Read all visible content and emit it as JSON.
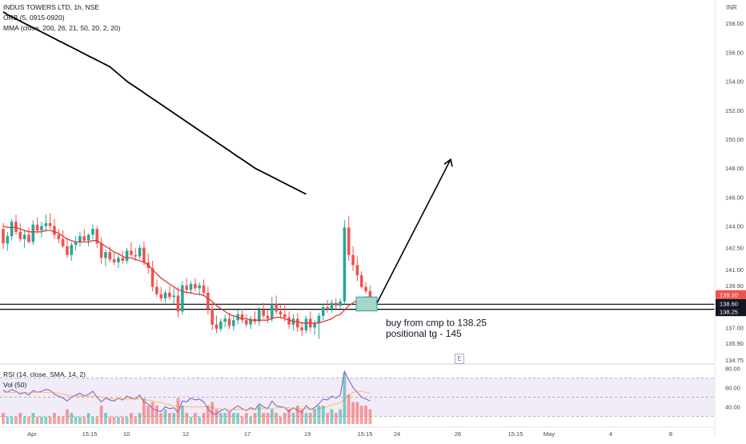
{
  "header": {
    "symbol_line": "INDUS TOWERS LTD, 1h, NSE",
    "orb_line": "ORB (5, 0915-0920)",
    "mma_line": "MMA (close, 200, 26, 21, 50, 20, 2, 20)"
  },
  "currency": "INR",
  "annotation": {
    "line1": "buy from cmp to 138.25",
    "line2": "positional tg - 145"
  },
  "marker_badge": "E",
  "rsi_pane": {
    "label": "RSI (14, close, SMA, 14, 2)",
    "vol_label": "Vol (50)",
    "ticks": [
      "80.00",
      "60.00",
      "40.00"
    ],
    "band": [
      30,
      70
    ]
  },
  "colors": {
    "up": "#26a69a",
    "down": "#ef5350",
    "ma_fast": "#e53935",
    "ma_slow": "#000000",
    "rsi_line": "#7e57c2",
    "rsi_band": "#ede7f6"
  },
  "chart_data": {
    "type": "candlestick",
    "timeframe": "1h",
    "ylim": [
      134.75,
      159.5
    ],
    "y_ticks": [
      "158.00",
      "156.00",
      "154.00",
      "152.00",
      "150.00",
      "148.00",
      "146.00",
      "144.00",
      "142.50",
      "141.00",
      "139.90",
      "137.00",
      "135.90",
      "134.75"
    ],
    "x_ticks": [
      "Apr",
      "15:15",
      "10",
      "12",
      "17",
      "19",
      "15:15",
      "24",
      "26",
      "15:15",
      "May",
      "4",
      "8"
    ],
    "price_labels": [
      {
        "text": "139.10",
        "value": 139.1,
        "style": "red"
      },
      {
        "text": "138.60",
        "value": 138.6,
        "style": "black"
      },
      {
        "text": "138.25",
        "value": 138.25,
        "style": "black"
      }
    ],
    "horizontal_levels": [
      138.6,
      138.25
    ],
    "candles": [
      [
        143.8,
        144.2,
        142.4,
        142.8
      ],
      [
        142.8,
        143.6,
        142.3,
        143.3
      ],
      [
        143.3,
        144.5,
        143.0,
        144.3
      ],
      [
        144.3,
        144.8,
        143.4,
        143.6
      ],
      [
        143.6,
        144.2,
        142.9,
        143.1
      ],
      [
        143.1,
        143.7,
        142.5,
        143.4
      ],
      [
        143.4,
        143.9,
        142.8,
        142.9
      ],
      [
        142.9,
        144.4,
        142.7,
        144.1
      ],
      [
        144.1,
        144.6,
        143.5,
        143.7
      ],
      [
        143.7,
        144.3,
        143.2,
        144.0
      ],
      [
        144.0,
        144.8,
        143.6,
        144.2
      ],
      [
        144.2,
        144.9,
        143.8,
        144.0
      ],
      [
        144.0,
        144.5,
        143.1,
        143.4
      ],
      [
        143.4,
        143.8,
        142.8,
        143.1
      ],
      [
        143.1,
        143.7,
        142.5,
        142.6
      ],
      [
        142.6,
        143.2,
        141.8,
        142.0
      ],
      [
        142.0,
        142.9,
        141.6,
        142.7
      ],
      [
        142.7,
        143.3,
        142.3,
        142.9
      ],
      [
        142.9,
        143.6,
        142.6,
        143.3
      ],
      [
        143.3,
        143.8,
        142.9,
        143.0
      ],
      [
        143.0,
        143.5,
        142.6,
        143.4
      ],
      [
        143.4,
        144.1,
        143.1,
        143.8
      ],
      [
        143.8,
        144.0,
        142.5,
        142.8
      ],
      [
        142.8,
        143.2,
        141.4,
        141.8
      ],
      [
        141.8,
        142.4,
        141.2,
        142.2
      ],
      [
        142.2,
        142.6,
        141.5,
        141.7
      ],
      [
        141.7,
        142.2,
        141.3,
        141.5
      ],
      [
        141.5,
        142.0,
        141.1,
        141.8
      ],
      [
        141.8,
        142.3,
        141.4,
        141.6
      ],
      [
        141.6,
        142.5,
        141.4,
        142.3
      ],
      [
        142.3,
        142.9,
        141.9,
        142.0
      ],
      [
        142.0,
        142.5,
        141.6,
        141.9
      ],
      [
        141.9,
        142.7,
        141.7,
        142.5
      ],
      [
        142.5,
        142.9,
        141.3,
        141.5
      ],
      [
        141.5,
        142.1,
        140.7,
        141.1
      ],
      [
        141.1,
        141.6,
        139.5,
        139.8
      ],
      [
        139.8,
        140.3,
        139.1,
        139.3
      ],
      [
        139.3,
        139.8,
        138.8,
        139.0
      ],
      [
        139.0,
        139.6,
        138.7,
        139.4
      ],
      [
        139.4,
        139.9,
        138.9,
        139.1
      ],
      [
        139.1,
        139.7,
        138.6,
        139.2
      ],
      [
        139.2,
        139.8,
        137.7,
        138.1
      ],
      [
        138.1,
        140.2,
        137.9,
        139.9
      ],
      [
        139.9,
        140.4,
        139.4,
        139.6
      ],
      [
        139.6,
        140.2,
        139.3,
        140.0
      ],
      [
        140.0,
        140.4,
        139.5,
        139.7
      ],
      [
        139.7,
        140.1,
        139.2,
        139.9
      ],
      [
        139.9,
        140.3,
        139.2,
        139.4
      ],
      [
        139.4,
        139.8,
        137.9,
        138.3
      ],
      [
        138.3,
        138.7,
        136.8,
        137.2
      ],
      [
        137.2,
        137.8,
        136.6,
        136.9
      ],
      [
        136.9,
        137.6,
        136.7,
        137.4
      ],
      [
        137.4,
        137.9,
        137.0,
        137.6
      ],
      [
        137.6,
        138.0,
        136.9,
        137.1
      ],
      [
        137.1,
        137.8,
        136.8,
        137.5
      ],
      [
        137.5,
        138.2,
        137.2,
        137.9
      ],
      [
        137.9,
        138.3,
        137.3,
        137.5
      ],
      [
        137.5,
        137.9,
        137.0,
        137.2
      ],
      [
        137.2,
        137.8,
        136.9,
        137.6
      ],
      [
        137.6,
        138.1,
        137.2,
        137.4
      ],
      [
        137.4,
        138.4,
        137.1,
        138.2
      ],
      [
        138.2,
        138.7,
        137.6,
        137.8
      ],
      [
        137.8,
        138.2,
        137.3,
        137.6
      ],
      [
        137.6,
        139.1,
        137.4,
        138.6
      ],
      [
        138.6,
        139.2,
        137.9,
        138.1
      ],
      [
        138.1,
        138.6,
        137.6,
        137.9
      ],
      [
        137.9,
        138.5,
        137.4,
        137.7
      ],
      [
        137.7,
        138.1,
        136.9,
        137.2
      ],
      [
        137.2,
        137.9,
        136.8,
        137.6
      ],
      [
        137.6,
        138.0,
        136.7,
        137.0
      ],
      [
        137.0,
        137.4,
        136.4,
        136.8
      ],
      [
        136.8,
        137.8,
        136.6,
        137.6
      ],
      [
        137.6,
        138.1,
        136.7,
        137.0
      ],
      [
        137.0,
        137.5,
        136.5,
        137.3
      ],
      [
        137.3,
        138.0,
        136.2,
        137.8
      ],
      [
        137.8,
        138.6,
        137.5,
        138.4
      ],
      [
        138.4,
        138.9,
        138.0,
        138.3
      ],
      [
        138.3,
        138.9,
        138.0,
        138.7
      ],
      [
        138.7,
        139.0,
        138.3,
        138.5
      ],
      [
        138.5,
        139.0,
        138.3,
        138.8
      ],
      [
        138.8,
        144.4,
        138.6,
        143.9
      ],
      [
        143.9,
        144.7,
        141.6,
        142.0
      ],
      [
        142.0,
        142.6,
        140.9,
        141.3
      ],
      [
        141.3,
        141.9,
        140.2,
        140.6
      ],
      [
        140.6,
        140.9,
        139.7,
        139.8
      ],
      [
        139.8,
        140.1,
        139.3,
        139.5
      ],
      [
        139.5,
        139.9,
        139.0,
        139.1
      ]
    ],
    "series": [
      {
        "values": [
          144.0,
          143.9,
          143.9,
          143.9,
          143.8,
          143.7,
          143.6,
          143.6,
          143.6,
          143.6,
          143.7,
          143.7,
          143.6,
          143.5,
          143.3,
          143.1,
          143.0,
          142.9,
          142.9,
          142.9,
          142.9,
          143.0,
          143.0,
          142.8,
          142.6,
          142.4,
          142.2,
          142.1,
          141.9,
          141.8,
          141.8,
          141.7,
          141.6,
          141.5,
          141.3,
          141.0,
          140.7,
          140.4,
          140.2,
          140.0,
          139.8,
          139.6,
          139.5,
          139.4,
          139.4,
          139.3,
          139.3,
          139.2,
          139.0,
          138.8,
          138.5,
          138.3,
          138.1,
          137.9,
          137.8,
          137.7,
          137.6,
          137.6,
          137.5,
          137.5,
          137.5,
          137.5,
          137.5,
          137.6,
          137.7,
          137.7,
          137.6,
          137.5,
          137.4,
          137.4,
          137.3,
          137.3,
          137.3,
          137.3,
          137.3,
          137.4,
          137.5,
          137.6,
          137.8,
          137.9,
          138.2,
          138.5,
          138.7,
          138.9,
          139.0,
          139.1,
          139.1
        ]
      },
      {
        "values": [
          158.8,
          158.6,
          158.45,
          158.3,
          158.15,
          158.0,
          157.85,
          157.7,
          157.55,
          157.4,
          157.25,
          157.1,
          156.95,
          156.8,
          156.65,
          156.5,
          156.35,
          156.2,
          156.05,
          155.9,
          155.75,
          155.6,
          155.45,
          155.3,
          155.15,
          155.0,
          154.75,
          154.5,
          154.25,
          154.0,
          153.8,
          153.6,
          153.4,
          153.2,
          153.0,
          152.8,
          152.6,
          152.4,
          152.2,
          152.0,
          151.8,
          151.6,
          151.4,
          151.2,
          151.0,
          150.8,
          150.6,
          150.4,
          150.2,
          150.0,
          149.8,
          149.6,
          149.4,
          149.2,
          149.0,
          148.8,
          148.6,
          148.4,
          148.2,
          148.0,
          147.85,
          147.7,
          147.55,
          147.4,
          147.25,
          147.1,
          146.95,
          146.8,
          146.65,
          146.5,
          146.35,
          146.2
        ]
      }
    ],
    "rsi": [
      57,
      55,
      58,
      56,
      53,
      55,
      52,
      57,
      55,
      56,
      58,
      57,
      53,
      51,
      49,
      46,
      50,
      52,
      54,
      51,
      53,
      56,
      50,
      45,
      49,
      47,
      46,
      49,
      47,
      51,
      49,
      48,
      52,
      45,
      43,
      38,
      36,
      35,
      40,
      38,
      39,
      34,
      46,
      45,
      49,
      47,
      48,
      45,
      38,
      33,
      32,
      36,
      38,
      34,
      38,
      41,
      38,
      36,
      39,
      37,
      43,
      40,
      38,
      46,
      41,
      40,
      39,
      35,
      39,
      36,
      34,
      41,
      37,
      39,
      43,
      48,
      47,
      51,
      49,
      52,
      77,
      68,
      60,
      55,
      50,
      48,
      46
    ],
    "rsi_ma": [
      55,
      55,
      55,
      55,
      55,
      55,
      55,
      55,
      55,
      55,
      55,
      55,
      55,
      54,
      53,
      52,
      51,
      51,
      51,
      51,
      51,
      51,
      51,
      50,
      50,
      49,
      48,
      48,
      48,
      48,
      48,
      48,
      48,
      47,
      47,
      46,
      45,
      44,
      43,
      42,
      41,
      40,
      40,
      40,
      40,
      40,
      40,
      40,
      40,
      39,
      38,
      38,
      37,
      37,
      37,
      37,
      37,
      37,
      37,
      37,
      38,
      38,
      38,
      38,
      39,
      39,
      39,
      39,
      38,
      38,
      38,
      38,
      37,
      37,
      38,
      39,
      40,
      42,
      43,
      44,
      48,
      52,
      55,
      56,
      56,
      55,
      54
    ],
    "volume": [
      3,
      2,
      2,
      2,
      3,
      2,
      2,
      3,
      2,
      2,
      2,
      2,
      3,
      2,
      2,
      4,
      3,
      2,
      2,
      2,
      3,
      2,
      2,
      5,
      3,
      2,
      2,
      2,
      2,
      2,
      3,
      2,
      3,
      7,
      5,
      6,
      5,
      3,
      4,
      3,
      3,
      7,
      5,
      3,
      2,
      3,
      2,
      3,
      5,
      6,
      4,
      3,
      3,
      3,
      3,
      3,
      2,
      3,
      2,
      3,
      5,
      3,
      3,
      4,
      3,
      2,
      3,
      4,
      3,
      5,
      4,
      3,
      3,
      4,
      5,
      5,
      3,
      4,
      3,
      4,
      14,
      8,
      6,
      6,
      5,
      5,
      4
    ]
  }
}
